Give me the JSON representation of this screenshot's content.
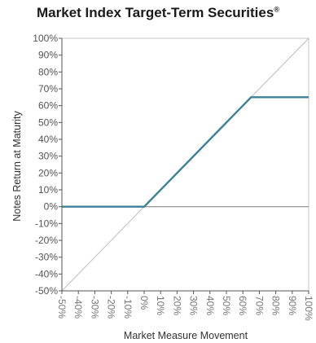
{
  "header": {
    "title": "Market Index Target-Term Securities",
    "title_mark": "®"
  },
  "chart_data": {
    "type": "line",
    "title": "Market Index Target-Term Securities®",
    "xlabel": "Market Measure Movement",
    "ylabel": "Notes Return at Maturity",
    "xlim": [
      -50,
      100
    ],
    "ylim": [
      -50,
      100
    ],
    "x_ticks": [
      "-50%",
      "-40%",
      "-30%",
      "-20%",
      "-10%",
      "0%",
      "10%",
      "20%",
      "30%",
      "40%",
      "50%",
      "60%",
      "70%",
      "80%",
      "90%",
      "100%"
    ],
    "y_ticks": [
      "100%",
      "90%",
      "80%",
      "70%",
      "60%",
      "50%",
      "40%",
      "30%",
      "20%",
      "10%",
      "0%",
      "-10%",
      "-20%",
      "-30%",
      "-40%",
      "-50%"
    ],
    "series": [
      {
        "x": [
          -50,
          0,
          65,
          100
        ],
        "y": [
          0,
          0,
          65,
          65
        ],
        "color": "#3d8294"
      },
      {
        "x": [
          -50,
          100
        ],
        "y": [
          -50,
          100
        ],
        "color": "#bdbdbd"
      }
    ],
    "zero_line": 0,
    "grid": false
  }
}
